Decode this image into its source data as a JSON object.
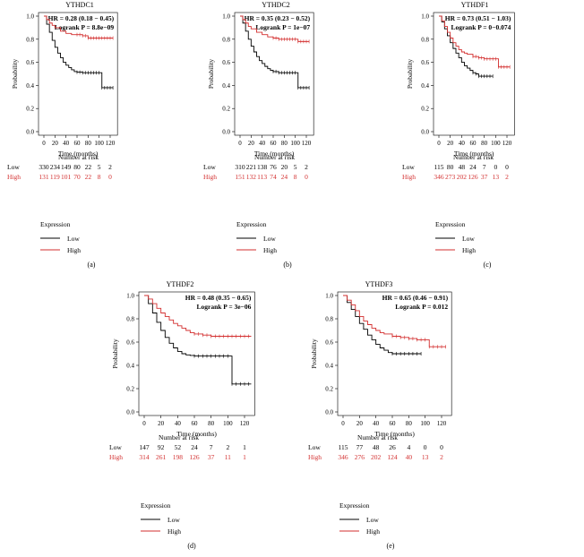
{
  "colors": {
    "low": "#000000",
    "high": "#d32f2f",
    "axis": "#000000"
  },
  "common": {
    "xlabel": "Time (months)",
    "ylabel": "Probability",
    "risk_title": "Number at risk",
    "legend_title": "Expression",
    "low_label": "Low",
    "high_label": "High"
  },
  "chart_data": [
    {
      "type": "line",
      "title": "YTHDC1",
      "panel_label": "(a)",
      "hr_text": "HR = 0.28 (0.18 − 0.45)",
      "logrank_text": "Logrank P = 8.8e−09",
      "xlim": [
        0,
        130
      ],
      "ylim": [
        0,
        1
      ],
      "xticks": [
        "0",
        "20",
        "40",
        "60",
        "80",
        "100",
        "120"
      ],
      "yticks": [
        "0.0",
        "0.2",
        "0.4",
        "0.6",
        "0.8",
        "1.0"
      ],
      "series": [
        {
          "name": "Low",
          "color": "#000000",
          "x": [
            0,
            5,
            10,
            15,
            20,
            25,
            30,
            35,
            40,
            45,
            50,
            55,
            60,
            70,
            80,
            90,
            100,
            104,
            105,
            125
          ],
          "y": [
            1.0,
            0.93,
            0.86,
            0.79,
            0.73,
            0.68,
            0.64,
            0.6,
            0.575,
            0.555,
            0.535,
            0.52,
            0.515,
            0.51,
            0.51,
            0.51,
            0.51,
            0.51,
            0.38,
            0.38
          ]
        },
        {
          "name": "High",
          "color": "#d32f2f",
          "x": [
            0,
            5,
            10,
            15,
            20,
            30,
            40,
            50,
            60,
            70,
            80,
            90,
            100,
            110,
            125
          ],
          "y": [
            1.0,
            0.97,
            0.94,
            0.92,
            0.9,
            0.87,
            0.85,
            0.84,
            0.84,
            0.83,
            0.81,
            0.81,
            0.81,
            0.81,
            0.81
          ]
        }
      ],
      "risk": {
        "low": [
          "330",
          "234",
          "149",
          "80",
          "22",
          "5",
          "2"
        ],
        "high": [
          "131",
          "119",
          "101",
          "70",
          "22",
          "8",
          "0"
        ]
      }
    },
    {
      "type": "line",
      "title": "YTHDC2",
      "panel_label": "(b)",
      "hr_text": "HR = 0.35 (0.23 − 0.52)",
      "logrank_text": "Logrank P = 1e−07",
      "xlim": [
        0,
        130
      ],
      "ylim": [
        0,
        1
      ],
      "xticks": [
        "0",
        "20",
        "40",
        "60",
        "80",
        "100",
        "120"
      ],
      "yticks": [
        "0.0",
        "0.2",
        "0.4",
        "0.6",
        "0.8",
        "1.0"
      ],
      "series": [
        {
          "name": "Low",
          "color": "#000000",
          "x": [
            0,
            5,
            10,
            15,
            20,
            25,
            30,
            35,
            40,
            45,
            50,
            55,
            60,
            70,
            80,
            90,
            100,
            104,
            105,
            125
          ],
          "y": [
            1.0,
            0.94,
            0.87,
            0.8,
            0.74,
            0.69,
            0.65,
            0.615,
            0.59,
            0.565,
            0.545,
            0.53,
            0.52,
            0.51,
            0.51,
            0.51,
            0.51,
            0.51,
            0.38,
            0.38
          ]
        },
        {
          "name": "High",
          "color": "#d32f2f",
          "x": [
            0,
            5,
            10,
            15,
            20,
            30,
            40,
            50,
            60,
            70,
            80,
            90,
            100,
            105,
            125
          ],
          "y": [
            1.0,
            0.97,
            0.94,
            0.91,
            0.89,
            0.86,
            0.84,
            0.82,
            0.81,
            0.8,
            0.8,
            0.8,
            0.8,
            0.78,
            0.78
          ]
        }
      ],
      "risk": {
        "low": [
          "310",
          "221",
          "138",
          "76",
          "20",
          "5",
          "2"
        ],
        "high": [
          "151",
          "132",
          "113",
          "74",
          "24",
          "8",
          "0"
        ]
      }
    },
    {
      "type": "line",
      "title": "YTHDF1",
      "panel_label": "(c)",
      "hr_text": "HR = 0.73 (0.51 − 1.03)",
      "logrank_text": "Logrank P = 0−0.074",
      "xlim": [
        0,
        130
      ],
      "ylim": [
        0,
        1
      ],
      "xticks": [
        "0",
        "20",
        "40",
        "60",
        "80",
        "100",
        "120"
      ],
      "yticks": [
        "0.0",
        "0.2",
        "0.4",
        "0.6",
        "0.8",
        "1.0"
      ],
      "series": [
        {
          "name": "Low",
          "color": "#000000",
          "x": [
            0,
            5,
            10,
            15,
            20,
            25,
            30,
            35,
            40,
            45,
            50,
            55,
            60,
            65,
            70,
            80,
            90,
            95
          ],
          "y": [
            1.0,
            0.95,
            0.89,
            0.83,
            0.77,
            0.72,
            0.68,
            0.64,
            0.6,
            0.57,
            0.55,
            0.53,
            0.51,
            0.5,
            0.48,
            0.48,
            0.48,
            0.48
          ]
        },
        {
          "name": "High",
          "color": "#d32f2f",
          "x": [
            0,
            5,
            10,
            15,
            20,
            25,
            30,
            35,
            40,
            45,
            50,
            60,
            70,
            80,
            90,
            100,
            104,
            105,
            125
          ],
          "y": [
            1.0,
            0.96,
            0.91,
            0.86,
            0.81,
            0.77,
            0.74,
            0.71,
            0.69,
            0.68,
            0.67,
            0.65,
            0.64,
            0.63,
            0.63,
            0.63,
            0.63,
            0.56,
            0.56
          ]
        }
      ],
      "risk": {
        "low": [
          "115",
          "80",
          "48",
          "24",
          "7",
          "0",
          "0"
        ],
        "high": [
          "346",
          "273",
          "202",
          "126",
          "37",
          "13",
          "2"
        ]
      }
    },
    {
      "type": "line",
      "title": "YTHDF2",
      "panel_label": "(d)",
      "hr_text": "HR = 0.48 (0.35 − 0.65)",
      "logrank_text": "Logrank P = 3e−06",
      "xlim": [
        0,
        130
      ],
      "ylim": [
        0,
        1
      ],
      "xticks": [
        "0",
        "20",
        "40",
        "60",
        "80",
        "100",
        "120"
      ],
      "yticks": [
        "0.0",
        "0.2",
        "0.4",
        "0.6",
        "0.8",
        "1.0"
      ],
      "series": [
        {
          "name": "Low",
          "color": "#000000",
          "x": [
            0,
            5,
            10,
            15,
            20,
            25,
            30,
            35,
            40,
            45,
            50,
            55,
            60,
            70,
            80,
            90,
            100,
            104,
            105,
            128
          ],
          "y": [
            1.0,
            0.93,
            0.85,
            0.77,
            0.7,
            0.64,
            0.59,
            0.55,
            0.52,
            0.5,
            0.49,
            0.485,
            0.48,
            0.48,
            0.48,
            0.48,
            0.48,
            0.48,
            0.24,
            0.24
          ]
        },
        {
          "name": "High",
          "color": "#d32f2f",
          "x": [
            0,
            5,
            10,
            15,
            20,
            25,
            30,
            35,
            40,
            45,
            50,
            55,
            60,
            70,
            80,
            90,
            100,
            110,
            128
          ],
          "y": [
            1.0,
            0.97,
            0.93,
            0.89,
            0.85,
            0.82,
            0.79,
            0.76,
            0.74,
            0.72,
            0.7,
            0.68,
            0.67,
            0.66,
            0.65,
            0.65,
            0.65,
            0.65,
            0.65
          ]
        }
      ],
      "risk": {
        "low": [
          "147",
          "92",
          "52",
          "24",
          "7",
          "2",
          "1"
        ],
        "high": [
          "314",
          "261",
          "198",
          "126",
          "37",
          "11",
          "1"
        ]
      }
    },
    {
      "type": "line",
      "title": "YTHDF3",
      "panel_label": "(e)",
      "hr_text": "HR = 0.65 (0.46 − 0.91)",
      "logrank_text": "Logrank P = 0.012",
      "xlim": [
        0,
        130
      ],
      "ylim": [
        0,
        1
      ],
      "xticks": [
        "0",
        "20",
        "40",
        "60",
        "80",
        "100",
        "120"
      ],
      "yticks": [
        "0.0",
        "0.2",
        "0.4",
        "0.6",
        "0.8",
        "1.0"
      ],
      "series": [
        {
          "name": "Low",
          "color": "#000000",
          "x": [
            0,
            5,
            10,
            15,
            20,
            25,
            30,
            35,
            40,
            45,
            50,
            55,
            60,
            70,
            80,
            90,
            95
          ],
          "y": [
            1.0,
            0.94,
            0.88,
            0.82,
            0.76,
            0.71,
            0.66,
            0.62,
            0.58,
            0.55,
            0.53,
            0.51,
            0.5,
            0.5,
            0.5,
            0.5,
            0.5
          ]
        },
        {
          "name": "High",
          "color": "#d32f2f",
          "x": [
            0,
            5,
            10,
            15,
            20,
            25,
            30,
            35,
            40,
            45,
            50,
            60,
            70,
            80,
            90,
            100,
            104,
            105,
            125
          ],
          "y": [
            1.0,
            0.96,
            0.92,
            0.87,
            0.82,
            0.78,
            0.75,
            0.72,
            0.7,
            0.68,
            0.67,
            0.65,
            0.64,
            0.63,
            0.62,
            0.62,
            0.62,
            0.56,
            0.56
          ]
        }
      ],
      "risk": {
        "low": [
          "115",
          "77",
          "48",
          "26",
          "4",
          "0",
          "0"
        ],
        "high": [
          "346",
          "276",
          "202",
          "124",
          "40",
          "13",
          "2"
        ]
      }
    }
  ]
}
